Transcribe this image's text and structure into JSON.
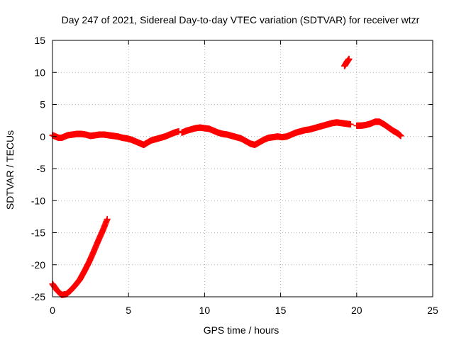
{
  "chart_data": {
    "type": "scatter",
    "title": "Day 247 of 2021, Sidereal Day-to-day VTEC variation (SDTVAR) for receiver wtzr",
    "xlabel": "GPS time / hours",
    "ylabel": "SDTVAR / TECUs",
    "xlim": [
      0,
      25
    ],
    "ylim": [
      -25,
      15
    ],
    "x_ticks": [
      0,
      5,
      10,
      15,
      20,
      25
    ],
    "y_ticks": [
      15,
      10,
      5,
      0,
      -5,
      -10,
      -15,
      -20,
      -25
    ],
    "grid": true,
    "marker": "plus",
    "color": "#ff0000",
    "segments": [
      {
        "name": "early",
        "x": [
          0.0,
          0.3,
          0.6,
          0.9,
          1.2,
          1.5,
          1.8,
          2.1,
          2.4,
          2.7,
          3.0,
          3.3,
          3.6
        ],
        "y": [
          -23.0,
          -24.0,
          -24.7,
          -24.6,
          -24.0,
          -23.2,
          -22.3,
          -21.0,
          -19.6,
          -18.0,
          -16.3,
          -14.7,
          -12.9
        ]
      },
      {
        "name": "main",
        "x": [
          0.0,
          0.2,
          0.4,
          0.6,
          0.8,
          1.0,
          1.3,
          1.6,
          1.9,
          2.2,
          2.5,
          2.8,
          3.1,
          3.4,
          3.7,
          4.0,
          4.3,
          4.6,
          4.9,
          5.2,
          5.5,
          5.8,
          6.0,
          6.2,
          6.5,
          6.8,
          7.1,
          7.4,
          7.7,
          8.0,
          8.3
        ],
        "y": [
          0.2,
          0.0,
          -0.2,
          -0.2,
          0.0,
          0.2,
          0.3,
          0.4,
          0.4,
          0.3,
          0.1,
          0.2,
          0.3,
          0.3,
          0.2,
          0.1,
          0.0,
          -0.2,
          -0.3,
          -0.5,
          -0.8,
          -1.1,
          -1.3,
          -1.0,
          -0.6,
          -0.4,
          -0.2,
          0.0,
          0.3,
          0.6,
          0.8
        ]
      },
      {
        "name": "mid",
        "x": [
          8.5,
          8.8,
          9.1,
          9.4,
          9.7,
          10.0,
          10.3,
          10.6,
          10.9,
          11.2,
          11.5,
          11.8,
          12.1,
          12.4,
          12.7,
          13.0,
          13.3,
          13.6,
          13.9,
          14.2,
          14.5,
          14.8,
          15.1,
          15.4,
          15.7,
          16.0,
          16.3,
          16.6,
          16.9,
          17.2,
          17.5,
          17.8,
          18.1,
          18.4,
          18.7,
          19.0,
          19.3,
          19.6
        ],
        "y": [
          0.6,
          0.9,
          1.1,
          1.3,
          1.4,
          1.3,
          1.2,
          0.9,
          0.6,
          0.4,
          0.3,
          0.1,
          -0.1,
          -0.3,
          -0.7,
          -1.1,
          -1.3,
          -0.9,
          -0.5,
          -0.2,
          -0.1,
          0.0,
          -0.1,
          0.0,
          0.3,
          0.6,
          0.8,
          1.0,
          1.1,
          1.3,
          1.5,
          1.7,
          1.9,
          2.1,
          2.2,
          2.1,
          2.0,
          1.9
        ]
      },
      {
        "name": "outlier",
        "x": [
          19.2,
          19.35,
          19.5
        ],
        "y": [
          11.0,
          11.6,
          12.1
        ]
      },
      {
        "name": "late",
        "x": [
          20.0,
          20.3,
          20.6,
          20.9,
          21.2,
          21.5,
          21.8,
          22.1,
          22.4,
          22.7,
          22.9
        ],
        "y": [
          1.7,
          1.7,
          1.8,
          2.0,
          2.3,
          2.3,
          1.9,
          1.4,
          0.9,
          0.5,
          0.1
        ]
      }
    ]
  }
}
